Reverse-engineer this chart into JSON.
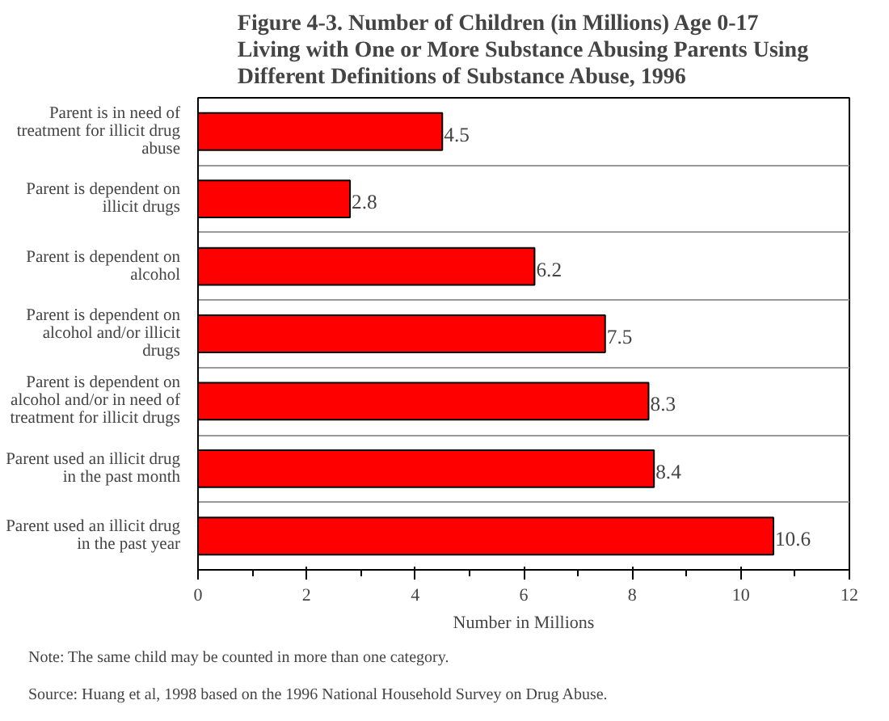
{
  "chart_data": {
    "type": "bar",
    "orientation": "horizontal",
    "title": "Figure 4-3.  Number of Children (in Millions) Age 0-17 Living with One or More Substance Abusing Parents Using Different Definitions of Substance Abuse, 1996",
    "xlabel": "Number in Millions",
    "categories": [
      "Parent is in need of treatment for illicit drug abuse",
      "Parent is dependent on illicit drugs",
      "Parent is dependent on alcohol",
      "Parent is dependent on alcohol and/or illicit drugs",
      "Parent is dependent on alcohol and/or in need of treatment for illicit drugs",
      "Parent used an illicit drug in the past month",
      "Parent used an illicit drug in the past year"
    ],
    "values": [
      4.5,
      2.8,
      6.2,
      7.5,
      8.3,
      8.4,
      10.6
    ],
    "color": "#ff0000",
    "data_labels": true,
    "xlim": [
      0,
      12
    ],
    "xticks": [
      0,
      {
        "value": 1,
        "label": null
      },
      2,
      {
        "value": 3,
        "label": null
      },
      4,
      {
        "value": 5,
        "label": null
      },
      6,
      {
        "value": 7,
        "label": null
      },
      8,
      {
        "value": 9,
        "label": null
      },
      10,
      {
        "value": 11,
        "label": null
      },
      12
    ],
    "grid": "y",
    "annotations": [
      "Note:  The same child may be counted in more than one category.",
      "Source:  Huang et al, 1998 based on the 1996 National Household Survey on Drug Abuse."
    ]
  }
}
